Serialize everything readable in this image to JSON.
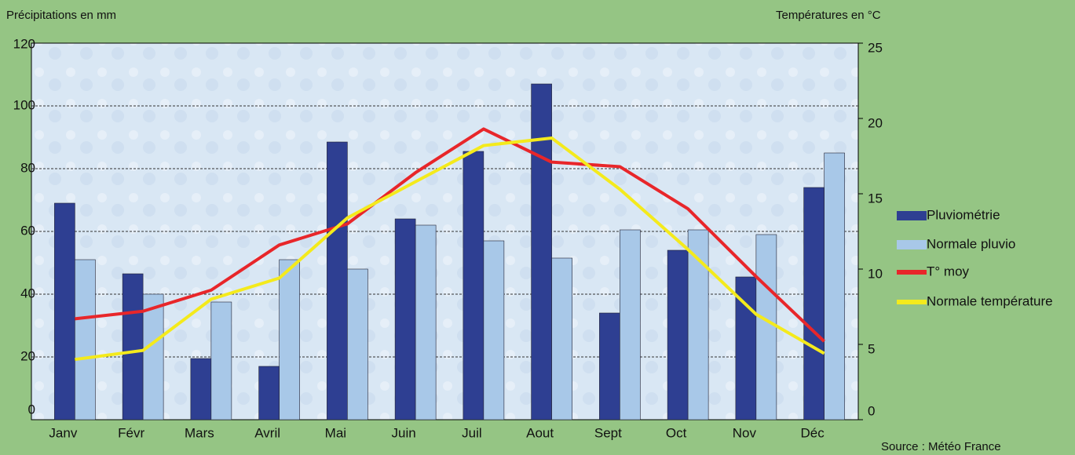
{
  "chart_data": {
    "type": "bar",
    "y_label": "Précipitations en mm",
    "y2_label": "Températures en °C",
    "source": "Source : Météo France",
    "categories": [
      "Janv",
      "Févr",
      "Mars",
      "Avril",
      "Mai",
      "Juin",
      "Juil",
      "Aout",
      "Sept",
      "Oct",
      "Nov",
      "Déc"
    ],
    "series": [
      {
        "name": "Pluviométrie",
        "type": "bar",
        "color": "#2e3f92",
        "values": [
          69,
          46.5,
          19.5,
          17,
          88.5,
          64,
          85.5,
          107,
          34,
          54,
          45.5,
          74
        ]
      },
      {
        "name": "Normale  pluvio",
        "type": "bar",
        "color": "#a8c8e8",
        "values": [
          51,
          40,
          37.5,
          51,
          48,
          62,
          57,
          51.5,
          60.5,
          60.5,
          59,
          85
        ]
      },
      {
        "name": "T° moy",
        "type": "line",
        "axis": "y2",
        "color": "#e8262a",
        "values": [
          6.7,
          7.2,
          8.6,
          11.6,
          13,
          16.4,
          19.3,
          17.1,
          16.8,
          14,
          9.5,
          5.2
        ]
      },
      {
        "name": "Normale température",
        "type": "line",
        "axis": "y2",
        "color": "#f4ea1c",
        "values": [
          4.0,
          4.6,
          8.0,
          9.4,
          13.4,
          15.8,
          18.2,
          18.7,
          15.3,
          11.3,
          7.0,
          4.4
        ]
      }
    ],
    "ylim": [
      0,
      120
    ],
    "yticks": [
      0,
      20,
      40,
      60,
      80,
      100,
      120
    ],
    "y2lim": [
      0,
      25
    ],
    "y2ticks": [
      0,
      5,
      10,
      15,
      20,
      25
    ],
    "grid": true
  }
}
